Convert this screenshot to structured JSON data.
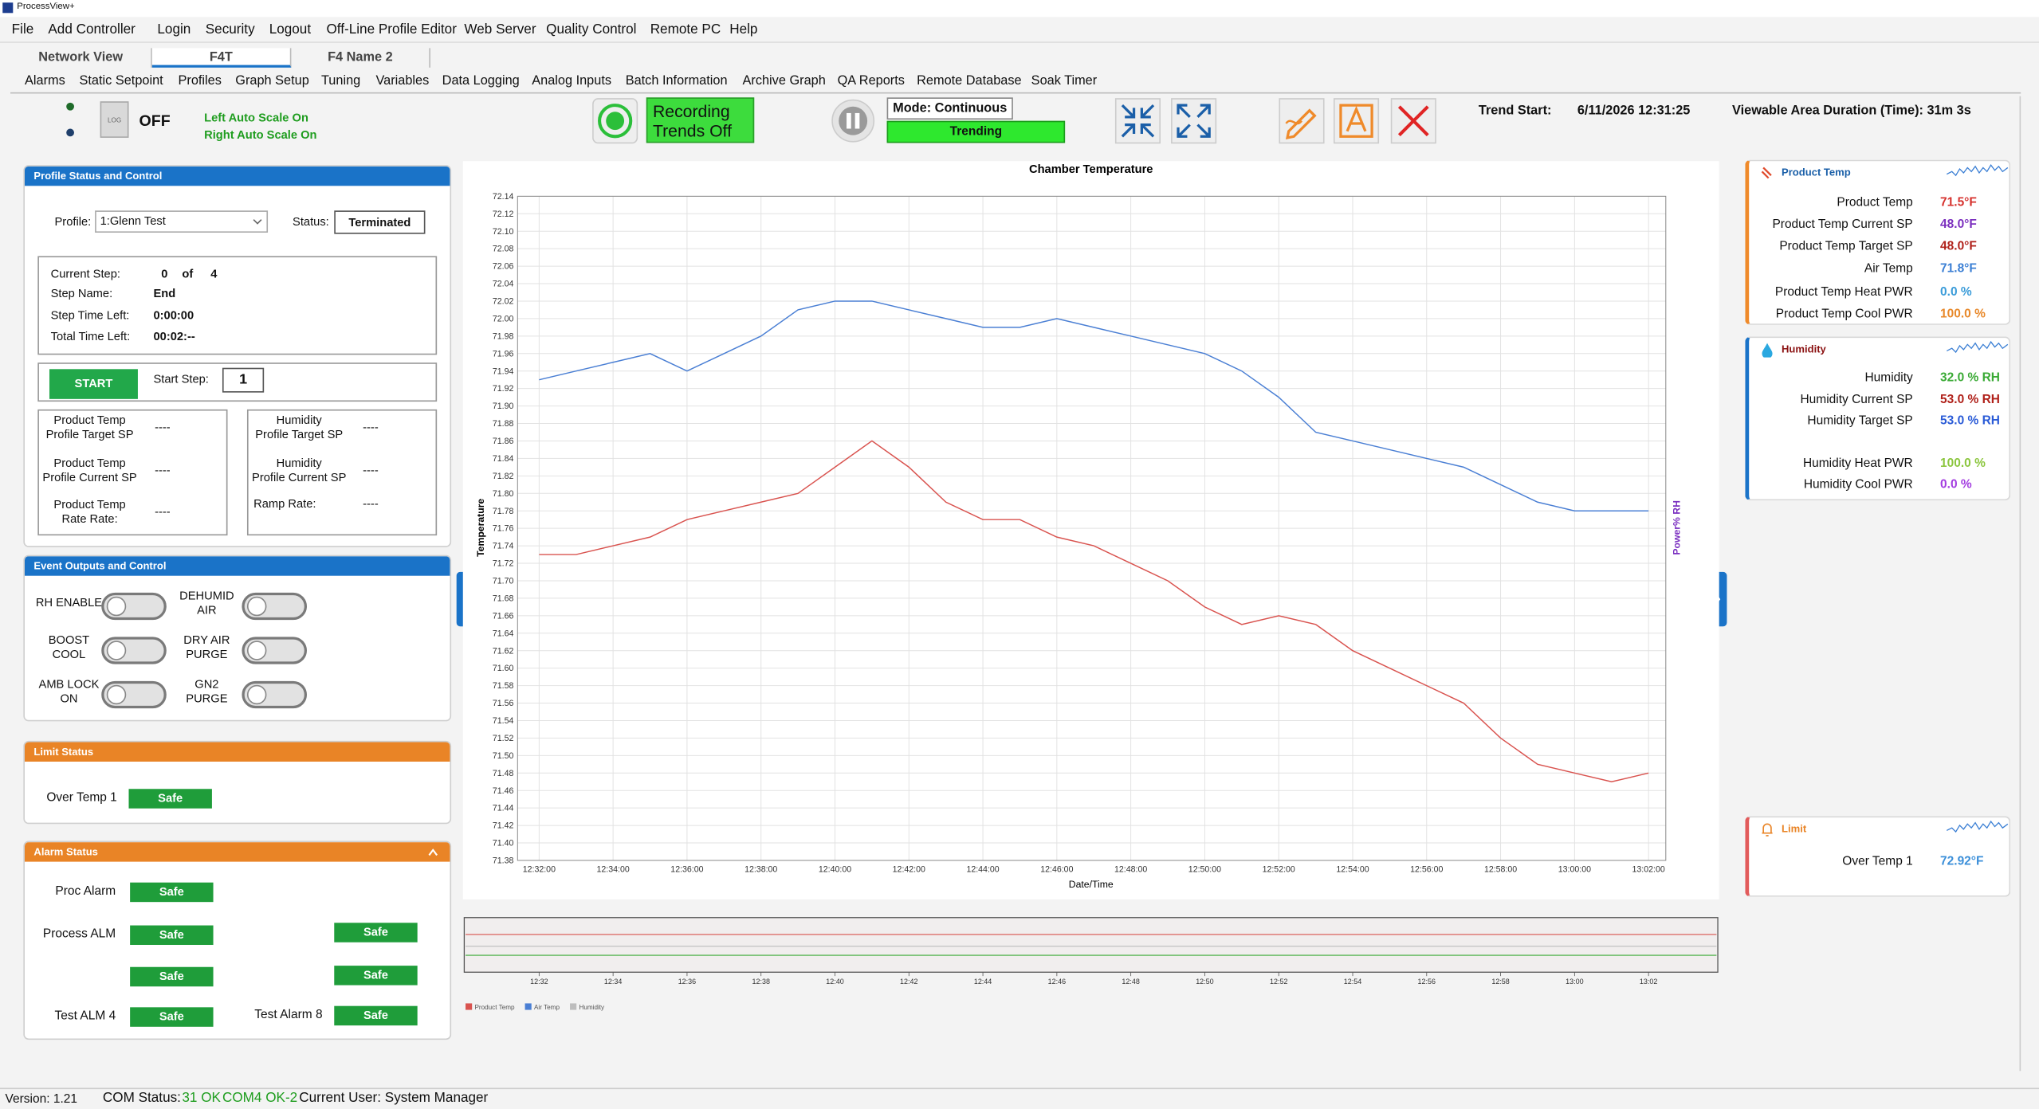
{
  "window_title": "ProcessView+",
  "menu": [
    "File",
    "Add Controller",
    "Login",
    "Security",
    "Logout",
    "Off-Line Profile Editor",
    "Web Server",
    "Quality Control",
    "Remote PC",
    "Help"
  ],
  "tabs": [
    "Network View",
    "F4T",
    "F4 Name 2"
  ],
  "toolbar": [
    "Alarms",
    "Static Setpoint",
    "Profiles",
    "Graph Setup",
    "Tuning",
    "Variables",
    "Data Logging",
    "Analog Inputs",
    "Batch Information",
    "Archive Graph",
    "QA Reports",
    "Remote Database",
    "Soak Timer"
  ],
  "header": {
    "log_icon": "LOG",
    "log_state": "OFF",
    "left_scale": "Left Auto Scale On",
    "right_scale": "Right Auto Scale On",
    "recording": "Recording\nTrends Off",
    "mode": "Mode: Continuous",
    "trending": "Trending",
    "trend_start_label": "Trend Start:",
    "trend_start": "6/11/2026 12:31:25",
    "duration": "Viewable Area Duration (Time): 31m 3s"
  },
  "profile": {
    "title": "Profile Status and Control",
    "profile_label": "Profile:",
    "profile_value": "1:Glenn Test",
    "status_label": "Status:",
    "status_value": "Terminated",
    "current_step_label": "Current Step:",
    "current_step": 0,
    "of": "of",
    "total_steps": 4,
    "step_name_label": "Step Name:",
    "step_name": "End",
    "step_time_label": "Step Time Left:",
    "step_time": "0:00:00",
    "total_time_label": "Total Time Left:",
    "total_time": "00:02:--",
    "start": "START",
    "start_step_label": "Start Step:",
    "start_step": 1,
    "left_sp": [
      {
        "label": "Product Temp\nProfile Target SP",
        "value": "----"
      },
      {
        "label": "Product Temp\nProfile Current SP",
        "value": "----"
      },
      {
        "label": "Product Temp\nRate Rate:",
        "value": "----"
      }
    ],
    "right_sp": [
      {
        "label": "Humidity\nProfile Target SP",
        "value": "----"
      },
      {
        "label": "Humidity\nProfile Current SP",
        "value": "----"
      },
      {
        "label": "Ramp Rate:",
        "value": "----"
      }
    ]
  },
  "events": {
    "title": "Event Outputs and Control",
    "outputs": [
      "RH ENABLE",
      "DEHUMID\nAIR",
      "BOOST\nCOOL",
      "DRY AIR\nPURGE",
      "AMB LOCK\nON",
      "GN2\nPURGE"
    ]
  },
  "limit_status": {
    "title": "Limit Status",
    "rows": [
      {
        "label": "Over Temp 1",
        "status": "Safe"
      }
    ]
  },
  "alarm_status": {
    "title": "Alarm Status",
    "left": [
      {
        "label": "Proc Alarm",
        "status": "Safe"
      },
      {
        "label": "Process ALM",
        "status": "Safe"
      },
      {
        "status": "Safe"
      },
      {
        "label": "Test ALM 4",
        "status": "Safe"
      }
    ],
    "right": [
      {
        "status": "Safe"
      },
      {
        "status": "Safe"
      },
      {
        "label": "Test Alarm 8",
        "status": "Safe"
      }
    ]
  },
  "chart_data": {
    "type": "line",
    "title": "Chamber Temperature",
    "x_label": "Date/Time",
    "y_label": "Temperature",
    "y2_label": "Power% RH",
    "grid": true,
    "xlim": [
      "12:31:25",
      "13:02:28"
    ],
    "x": [
      "12:32:00",
      "12:33:00",
      "12:34:00",
      "12:35:00",
      "12:36:00",
      "12:37:00",
      "12:38:00",
      "12:39:00",
      "12:40:00",
      "12:41:00",
      "12:42:00",
      "12:43:00",
      "12:44:00",
      "12:45:00",
      "12:46:00",
      "12:47:00",
      "12:48:00",
      "12:49:00",
      "12:50:00",
      "12:51:00",
      "12:52:00",
      "12:53:00",
      "12:54:00",
      "12:55:00",
      "12:56:00",
      "12:57:00",
      "12:58:00",
      "12:59:00",
      "13:00:00",
      "13:01:00",
      "13:02:00"
    ],
    "xticks": [
      "12:32:00",
      "12:34:00",
      "12:36:00",
      "12:38:00",
      "12:40:00",
      "12:42:00",
      "12:44:00",
      "12:46:00",
      "12:48:00",
      "12:50:00",
      "12:52:00",
      "12:54:00",
      "12:56:00",
      "12:58:00",
      "13:00:00",
      "13:02:00"
    ],
    "ylim": [
      71.38,
      72.14
    ],
    "yticks": [
      72.14,
      72.12,
      {
        "value": 72.1,
        "label": "72.10"
      },
      72.08,
      72.06,
      72.04,
      72.02,
      {
        "value": 72,
        "label": "72.00"
      },
      71.98,
      71.96,
      71.94,
      71.92,
      {
        "value": 71.9,
        "label": "71.90"
      },
      71.88,
      71.86,
      71.84,
      71.82,
      {
        "value": 71.8,
        "label": "71.80"
      },
      71.78,
      71.76,
      71.74,
      71.72,
      {
        "value": 71.7,
        "label": "71.70"
      },
      71.68,
      71.66,
      71.64,
      71.62,
      {
        "value": 71.6,
        "label": "71.60"
      },
      71.58,
      71.56,
      71.54,
      71.52,
      {
        "value": 71.5,
        "label": "71.50"
      },
      71.48,
      71.46,
      71.44,
      71.42,
      {
        "value": 71.4,
        "label": "71.40"
      },
      71.38
    ],
    "series": [
      {
        "name": "Product Temp",
        "color": "#d9534f",
        "values": [
          71.73,
          71.73,
          71.74,
          71.75,
          71.77,
          71.78,
          71.79,
          71.8,
          71.83,
          71.86,
          71.83,
          71.79,
          71.77,
          71.77,
          71.75,
          71.74,
          71.72,
          71.7,
          71.67,
          71.65,
          71.66,
          71.65,
          71.62,
          71.6,
          71.58,
          71.56,
          71.52,
          71.49,
          71.48,
          71.47,
          71.48
        ]
      },
      {
        "name": "Air Temp",
        "color": "#4a7fd4",
        "values": [
          71.93,
          71.94,
          71.95,
          71.96,
          71.94,
          71.96,
          71.98,
          72.01,
          72.02,
          72.02,
          72.01,
          72.0,
          71.99,
          71.99,
          72.0,
          71.99,
          71.98,
          71.97,
          71.96,
          71.94,
          71.91,
          71.87,
          71.86,
          71.85,
          71.84,
          71.83,
          71.81,
          71.79,
          71.78,
          71.78,
          71.78
        ]
      },
      {
        "name": "Humidity",
        "color": "#bdbdbd",
        "values": [
          null,
          null,
          null,
          null,
          null,
          null,
          null,
          null,
          null,
          null,
          null,
          null,
          null,
          null,
          null,
          null,
          null,
          null,
          null,
          null,
          null,
          null,
          null,
          null,
          null,
          null,
          null,
          null,
          null,
          null,
          null
        ]
      }
    ]
  },
  "overview": {
    "xticks": [
      "12:32",
      "12:34",
      "12:36",
      "12:38",
      "12:40",
      "12:42",
      "12:44",
      "12:46",
      "12:48",
      "12:50",
      "12:52",
      "12:54",
      "12:56",
      "12:58",
      "13:00",
      "13:02"
    ]
  },
  "product_card": {
    "title": "Product Temp",
    "rows": [
      {
        "label": "Product Temp",
        "value": "71.5°F",
        "color": "#d6312d"
      },
      {
        "label": "Product Temp Current SP",
        "value": "48.0°F",
        "color": "#7b2fbe"
      },
      {
        "label": "Product Temp Target SP",
        "value": "48.0°F",
        "color": "#b0211a"
      },
      {
        "label": "Air Temp",
        "value": "71.8°F",
        "color": "#3b7fd4"
      },
      {
        "label": "Product Temp Heat PWR",
        "value": "0.0 %",
        "color": "#3b9cd9"
      },
      {
        "label": "Product Temp Cool PWR",
        "value": "100.0 %",
        "color": "#e8892b"
      }
    ]
  },
  "humidity_card": {
    "title": "Humidity",
    "rows": [
      {
        "label": "Humidity",
        "value": "32.0 % RH",
        "color": "#3aaa35"
      },
      {
        "label": "Humidity Current SP",
        "value": "53.0 % RH",
        "color": "#b0211a"
      },
      {
        "label": "Humidity Target SP",
        "value": "53.0 % RH",
        "color": "#2a5bd7"
      },
      {
        "label": "Humidity Heat PWR",
        "value": "100.0 %",
        "color": "#8cc63f"
      },
      {
        "label": "Humidity Cool PWR",
        "value": "0.0 %",
        "color": "#a33de0"
      }
    ]
  },
  "limit_card": {
    "title": "Limit",
    "rows": [
      {
        "label": "Over Temp 1",
        "value": "72.92°F",
        "color": "#3b8fd9"
      }
    ]
  },
  "status_bar": {
    "version": "Version: 1.21",
    "com_label": "COM Status:",
    "com1": "31 OK",
    "com2": "COM4 OK-2",
    "user": "Current User: System Manager"
  }
}
